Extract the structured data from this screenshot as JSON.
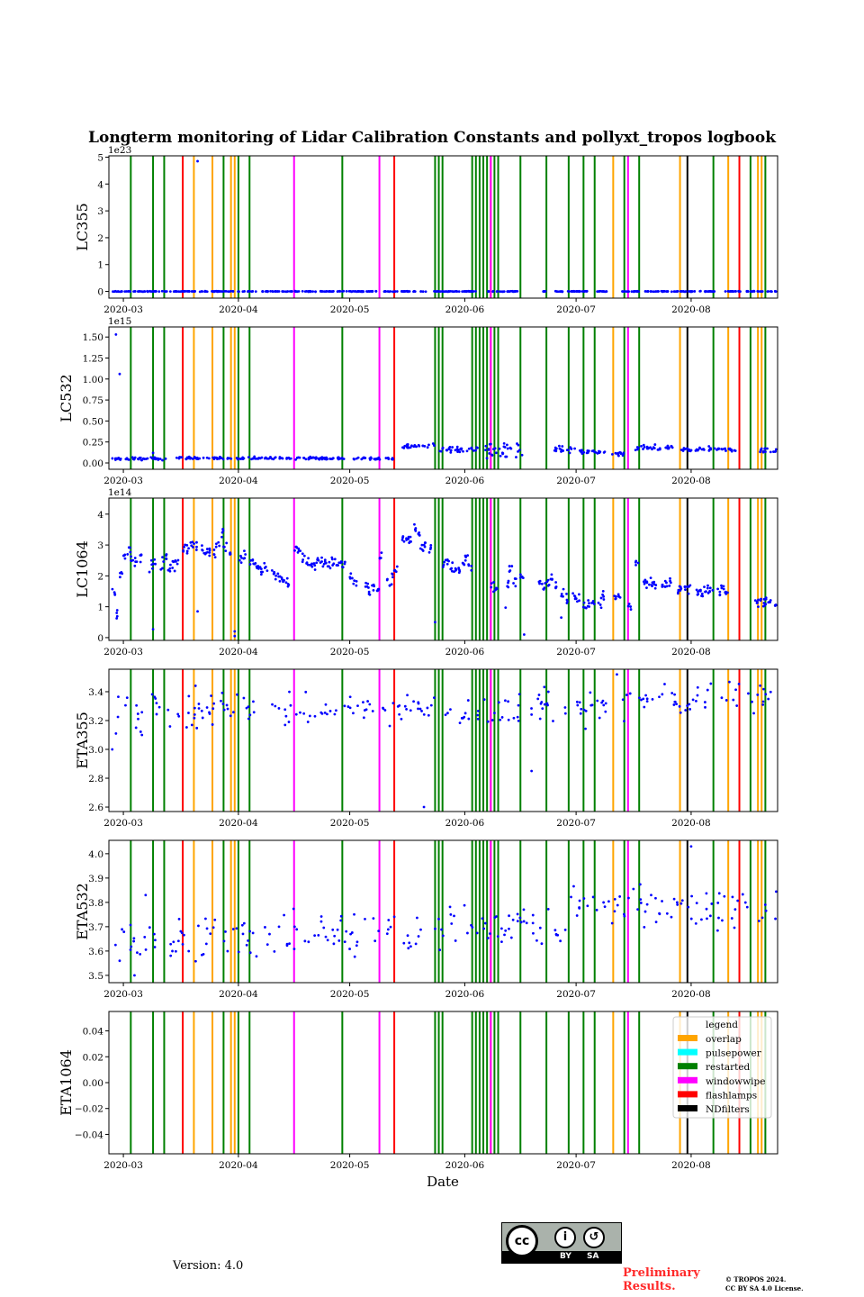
{
  "title": "Longterm monitoring of Lidar Calibration Constants and pollyxt_tropos logbook",
  "xlabel": "Date",
  "x_start": "2020-03-01",
  "xlim_days": [
    -3.9,
    176.3
  ],
  "xticks": [
    {
      "label": "2020-03",
      "date": "2020-03-01"
    },
    {
      "label": "2020-04",
      "date": "2020-04-01"
    },
    {
      "label": "2020-05",
      "date": "2020-05-01"
    },
    {
      "label": "2020-06",
      "date": "2020-06-01"
    },
    {
      "label": "2020-07",
      "date": "2020-07-01"
    },
    {
      "label": "2020-08",
      "date": "2020-08-01"
    }
  ],
  "legend": {
    "title": "legend",
    "entries": [
      {
        "label": "overlap",
        "color": "#ffa500"
      },
      {
        "label": "pulsepower",
        "color": "#00ffff"
      },
      {
        "label": "restarted",
        "color": "#008000"
      },
      {
        "label": "windowwipe",
        "color": "#ff00ff"
      },
      {
        "label": "flashlamps",
        "color": "#ff0000"
      },
      {
        "label": "NDfilters",
        "color": "#000000"
      }
    ]
  },
  "events": [
    {
      "type": "restarted",
      "date": "2020-03-03"
    },
    {
      "type": "restarted",
      "date": "2020-03-09"
    },
    {
      "type": "restarted",
      "date": "2020-03-12"
    },
    {
      "type": "restarted",
      "date": "2020-03-28"
    },
    {
      "type": "restarted",
      "date": "2020-04-01"
    },
    {
      "type": "restarted",
      "date": "2020-04-04"
    },
    {
      "type": "restarted",
      "date": "2020-04-29"
    },
    {
      "type": "restarted",
      "date": "2020-05-24"
    },
    {
      "type": "restarted",
      "date": "2020-05-25"
    },
    {
      "type": "restarted",
      "date": "2020-05-26"
    },
    {
      "type": "restarted",
      "date": "2020-06-03"
    },
    {
      "type": "restarted",
      "date": "2020-06-04"
    },
    {
      "type": "restarted",
      "date": "2020-06-05"
    },
    {
      "type": "restarted",
      "date": "2020-06-06"
    },
    {
      "type": "restarted",
      "date": "2020-06-07"
    },
    {
      "type": "restarted",
      "date": "2020-06-09"
    },
    {
      "type": "restarted",
      "date": "2020-06-10"
    },
    {
      "type": "restarted",
      "date": "2020-06-16"
    },
    {
      "type": "restarted",
      "date": "2020-06-23"
    },
    {
      "type": "restarted",
      "date": "2020-06-29"
    },
    {
      "type": "restarted",
      "date": "2020-07-03"
    },
    {
      "type": "restarted",
      "date": "2020-07-06"
    },
    {
      "type": "restarted",
      "date": "2020-07-14"
    },
    {
      "type": "restarted",
      "date": "2020-07-18"
    },
    {
      "type": "restarted",
      "date": "2020-08-07"
    },
    {
      "type": "restarted",
      "date": "2020-08-17"
    },
    {
      "type": "restarted",
      "date": "2020-08-21"
    },
    {
      "type": "flashlamps",
      "date": "2020-03-17"
    },
    {
      "type": "flashlamps",
      "date": "2020-05-13"
    },
    {
      "type": "flashlamps",
      "date": "2020-06-08"
    },
    {
      "type": "flashlamps",
      "date": "2020-08-14"
    },
    {
      "type": "overlap",
      "date": "2020-03-20"
    },
    {
      "type": "overlap",
      "date": "2020-03-25"
    },
    {
      "type": "overlap",
      "date": "2020-03-30"
    },
    {
      "type": "overlap",
      "date": "2020-03-31"
    },
    {
      "type": "overlap",
      "date": "2020-07-11"
    },
    {
      "type": "overlap",
      "date": "2020-07-29"
    },
    {
      "type": "overlap",
      "date": "2020-08-11"
    },
    {
      "type": "overlap",
      "date": "2020-08-19"
    },
    {
      "type": "overlap",
      "date": "2020-08-20"
    },
    {
      "type": "windowwipe",
      "date": "2020-04-16"
    },
    {
      "type": "windowwipe",
      "date": "2020-05-09"
    },
    {
      "type": "windowwipe",
      "date": "2020-06-08"
    },
    {
      "type": "windowwipe",
      "date": "2020-07-15"
    },
    {
      "type": "NDfilters",
      "date": "2020-07-31"
    }
  ],
  "event_colors": {
    "overlap": "#ffa500",
    "pulsepower": "#00ffff",
    "restarted": "#008000",
    "windowwipe": "#ff00ff",
    "flashlamps": "#ff0000",
    "NDfilters": "#000000"
  },
  "point_color": "#0000ff",
  "chart_data": [
    {
      "type": "scatter",
      "ylabel": "LC355",
      "offset_label": "1e23",
      "ylim": [
        -0.25,
        5.05
      ],
      "yticks": [
        0,
        1,
        2,
        3,
        4,
        5
      ],
      "ytick_labels": [
        "0",
        "1",
        "2",
        "3",
        "4",
        "5"
      ],
      "density": 3,
      "segments": [
        [
          -3,
          96,
          0,
          0.005
        ],
        [
          98,
          107,
          0,
          0.005
        ],
        [
          112,
          125,
          0,
          0.005
        ],
        [
          127,
          131,
          0,
          0.005
        ],
        [
          134,
          160,
          0,
          0.005
        ],
        [
          162,
          176,
          0,
          0.005
        ]
      ],
      "points": [
        [
          20,
          4.85
        ]
      ]
    },
    {
      "type": "scatter",
      "ylabel": "LC532",
      "offset_label": "1e15",
      "ylim": [
        -0.075,
        1.62
      ],
      "yticks": [
        0,
        0.25,
        0.5,
        0.75,
        1,
        1.25,
        1.5
      ],
      "ytick_labels": [
        "0.00",
        "0.25",
        "0.50",
        "0.75",
        "1.00",
        "1.25",
        "1.50"
      ],
      "density": 3,
      "segments": [
        [
          -3,
          12,
          0.05,
          0.008
        ],
        [
          14,
          60,
          0.055,
          0.008
        ],
        [
          62,
          73,
          0.05,
          0.008
        ],
        [
          75,
          84,
          0.2,
          0.015
        ],
        [
          85,
          96,
          0.16,
          0.02
        ],
        [
          97,
          108,
          0.15,
          0.05
        ],
        [
          116,
          122,
          0.16,
          0.02
        ],
        [
          123,
          130,
          0.13,
          0.012
        ],
        [
          131,
          135,
          0.11,
          0.015
        ],
        [
          138,
          148,
          0.18,
          0.015
        ],
        [
          150,
          165,
          0.16,
          0.015
        ],
        [
          171,
          176,
          0.15,
          0.015
        ]
      ],
      "points": [
        [
          -2,
          1.53
        ],
        [
          -1,
          1.06
        ],
        [
          8,
          0.12
        ]
      ]
    },
    {
      "type": "scatter",
      "ylabel": "LC1064",
      "offset_label": "1e14",
      "ylim": [
        -0.09,
        4.52
      ],
      "yticks": [
        0,
        1,
        2,
        3,
        4
      ],
      "ytick_labels": [
        "0",
        "1",
        "2",
        "3",
        "4"
      ],
      "density": 4,
      "spread": 0.09,
      "segments": [],
      "daily": [
        [
          -3,
          1.45
        ],
        [
          -2,
          0.75
        ],
        [
          -1,
          2.1
        ],
        [
          0,
          2.7
        ],
        [
          1,
          2.8
        ],
        [
          2,
          2.6
        ],
        [
          3,
          2.5
        ],
        [
          4,
          2.6
        ],
        [
          7,
          2.3
        ],
        [
          8,
          2.4
        ],
        [
          10,
          2.4
        ],
        [
          11,
          2.6
        ],
        [
          12,
          2.2
        ],
        [
          13,
          2.3
        ],
        [
          14,
          2.5
        ],
        [
          16,
          2.9
        ],
        [
          17,
          2.8
        ],
        [
          18,
          3.0
        ],
        [
          19,
          3.0
        ],
        [
          21,
          2.9
        ],
        [
          22,
          2.8
        ],
        [
          23,
          2.8
        ],
        [
          24,
          2.7
        ],
        [
          25,
          3.0
        ],
        [
          26,
          3.4
        ],
        [
          27,
          2.9
        ],
        [
          28,
          2.8
        ],
        [
          31,
          2.6
        ],
        [
          32,
          2.7
        ],
        [
          34,
          2.5
        ],
        [
          35,
          2.4
        ],
        [
          36,
          2.3
        ],
        [
          37,
          2.2
        ],
        [
          38,
          2.3
        ],
        [
          40,
          2.1
        ],
        [
          41,
          2.0
        ],
        [
          42,
          1.9
        ],
        [
          43,
          1.85
        ],
        [
          44,
          1.8
        ],
        [
          46,
          2.9
        ],
        [
          47,
          2.8
        ],
        [
          48,
          2.6
        ],
        [
          49,
          2.5
        ],
        [
          50,
          2.4
        ],
        [
          51,
          2.3
        ],
        [
          52,
          2.4
        ],
        [
          53,
          2.5
        ],
        [
          54,
          2.4
        ],
        [
          55,
          2.3
        ],
        [
          56,
          2.4
        ],
        [
          57,
          2.45
        ],
        [
          58,
          2.4
        ],
        [
          59,
          2.35
        ],
        [
          61,
          2.0
        ],
        [
          62,
          1.75
        ],
        [
          65,
          1.7
        ],
        [
          66,
          1.5
        ],
        [
          67,
          1.6
        ],
        [
          68,
          1.55
        ],
        [
          69,
          2.6
        ],
        [
          71,
          1.8
        ],
        [
          72,
          1.9
        ],
        [
          73,
          2.2
        ],
        [
          75,
          3.2
        ],
        [
          76,
          3.3
        ],
        [
          77,
          3.1
        ],
        [
          78,
          3.6
        ],
        [
          79,
          3.3
        ],
        [
          80,
          2.8
        ],
        [
          81,
          3.0
        ],
        [
          82,
          2.9
        ],
        [
          86,
          2.4
        ],
        [
          87,
          2.5
        ],
        [
          88,
          2.3
        ],
        [
          89,
          2.2
        ],
        [
          90,
          2.2
        ],
        [
          91,
          2.4
        ],
        [
          92,
          2.6
        ],
        [
          93,
          2.3
        ],
        [
          99,
          1.7
        ],
        [
          100,
          1.6
        ],
        [
          103,
          1.8
        ],
        [
          104,
          2.2
        ],
        [
          105,
          1.8
        ],
        [
          107,
          2.0
        ],
        [
          112,
          1.7
        ],
        [
          113,
          1.65
        ],
        [
          114,
          1.8
        ],
        [
          115,
          1.9
        ],
        [
          116,
          1.7
        ],
        [
          118,
          1.4
        ],
        [
          119,
          1.2
        ],
        [
          121,
          1.3
        ],
        [
          122,
          1.2
        ],
        [
          124,
          1.1
        ],
        [
          125,
          1.15
        ],
        [
          126,
          1.1
        ],
        [
          128,
          1.2
        ],
        [
          129,
          1.3
        ],
        [
          132,
          1.3
        ],
        [
          133,
          1.35
        ],
        [
          136,
          1.0
        ],
        [
          138,
          2.4
        ],
        [
          140,
          1.8
        ],
        [
          141,
          1.7
        ],
        [
          142,
          1.8
        ],
        [
          143,
          1.7
        ],
        [
          145,
          1.7
        ],
        [
          146,
          1.75
        ],
        [
          147,
          1.8
        ],
        [
          149,
          1.6
        ],
        [
          150,
          1.65
        ],
        [
          151,
          1.6
        ],
        [
          152,
          1.55
        ],
        [
          154,
          1.5
        ],
        [
          155,
          1.45
        ],
        [
          156,
          1.5
        ],
        [
          157,
          1.55
        ],
        [
          158,
          1.6
        ],
        [
          160,
          1.5
        ],
        [
          161,
          1.6
        ],
        [
          162,
          1.4
        ],
        [
          170,
          1.1
        ],
        [
          171,
          1.2
        ],
        [
          172,
          1.1
        ],
        [
          173,
          1.15
        ],
        [
          174,
          1.1
        ],
        [
          175,
          1.05
        ]
      ],
      "points": [
        [
          8,
          0.27
        ],
        [
          20,
          0.85
        ],
        [
          30,
          0.2
        ],
        [
          30,
          0.05
        ],
        [
          84,
          0.5
        ],
        [
          108,
          0.1
        ],
        [
          103,
          0.97
        ],
        [
          118,
          0.65
        ]
      ]
    },
    {
      "type": "scatter",
      "ylabel": "ETA355",
      "offset_label": "",
      "ylim": [
        2.569,
        3.556
      ],
      "yticks": [
        2.6,
        2.8,
        3.0,
        3.2,
        3.4
      ],
      "ytick_labels": [
        "2.6",
        "2.8",
        "3.0",
        "3.2",
        "3.4"
      ],
      "density": 1.3,
      "segments": [
        [
          -2,
          20,
          3.27,
          0.07
        ],
        [
          20,
          60,
          3.28,
          0.05
        ],
        [
          60,
          100,
          3.27,
          0.05
        ],
        [
          100,
          140,
          3.3,
          0.06
        ],
        [
          140,
          176,
          3.36,
          0.05
        ]
      ],
      "points": [
        [
          -3,
          3.0
        ],
        [
          -2,
          3.11
        ],
        [
          5,
          3.1
        ],
        [
          110,
          2.85
        ],
        [
          81,
          2.6
        ],
        [
          133,
          3.52
        ]
      ]
    },
    {
      "type": "scatter",
      "ylabel": "ETA532",
      "offset_label": "",
      "ylim": [
        3.47,
        4.055
      ],
      "yticks": [
        3.5,
        3.6,
        3.7,
        3.8,
        3.9,
        4.0
      ],
      "ytick_labels": [
        "3.5",
        "3.6",
        "3.7",
        "3.8",
        "3.9",
        "4.0"
      ],
      "density": 1.3,
      "segments": [
        [
          -3,
          40,
          3.66,
          0.05
        ],
        [
          40,
          80,
          3.68,
          0.045
        ],
        [
          80,
          120,
          3.7,
          0.045
        ],
        [
          120,
          176,
          3.77,
          0.04
        ]
      ],
      "points": [
        [
          3,
          3.5
        ],
        [
          153,
          4.03
        ],
        [
          -1,
          3.56
        ],
        [
          6,
          3.83
        ]
      ]
    },
    {
      "type": "scatter",
      "ylabel": "ETA1064",
      "offset_label": "",
      "ylim": [
        -0.055,
        0.055
      ],
      "yticks": [
        -0.04,
        -0.02,
        0,
        0.02,
        0.04
      ],
      "ytick_labels": [
        "−0.04",
        "−0.02",
        "0.00",
        "0.02",
        "0.04"
      ],
      "density": 0,
      "segments": [],
      "points": []
    }
  ],
  "footer": {
    "version": "Version: 4.0",
    "license_badge": {
      "by": "BY",
      "sa": "SA",
      "cc": "cc"
    },
    "preliminary": [
      "Preliminary",
      "Results."
    ],
    "copyright": [
      "© TROPOS 2024.",
      "CC BY SA 4.0 License."
    ]
  }
}
